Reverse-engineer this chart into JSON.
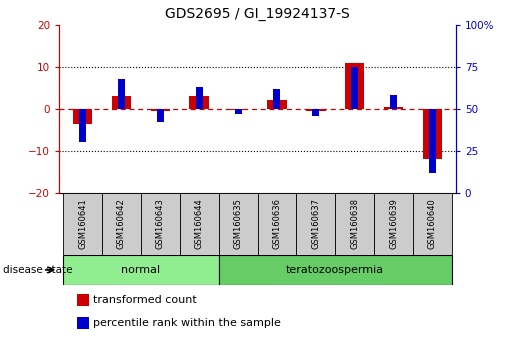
{
  "title": "GDS2695 / GI_19924137-S",
  "samples": [
    "GSM160641",
    "GSM160642",
    "GSM160643",
    "GSM160644",
    "GSM160635",
    "GSM160636",
    "GSM160637",
    "GSM160638",
    "GSM160639",
    "GSM160640"
  ],
  "red_values": [
    -3.5,
    3.0,
    -0.5,
    3.0,
    -0.3,
    2.0,
    -0.5,
    11.0,
    0.5,
    -12.0
  ],
  "blue_percentiles": [
    30,
    68,
    42,
    63,
    47,
    62,
    46,
    75,
    58,
    12
  ],
  "left_ylim": [
    -20,
    20
  ],
  "right_ylim": [
    0,
    100
  ],
  "left_yticks": [
    -20,
    -10,
    0,
    10,
    20
  ],
  "right_yticks": [
    0,
    25,
    50,
    75,
    100
  ],
  "groups": [
    {
      "label": "normal",
      "indices": [
        0,
        1,
        2,
        3
      ],
      "color": "#90EE90"
    },
    {
      "label": "teratozoospermia",
      "indices": [
        4,
        5,
        6,
        7,
        8,
        9
      ],
      "color": "#66CC66"
    }
  ],
  "red_color": "#CC0000",
  "blue_color": "#0000CC",
  "sample_box_color": "#CCCCCC",
  "legend_items": [
    {
      "label": "transformed count",
      "color": "#CC0000"
    },
    {
      "label": "percentile rank within the sample",
      "color": "#0000CC"
    }
  ],
  "disease_state_label": "disease state",
  "title_fontsize": 10,
  "tick_fontsize": 7.5,
  "legend_fontsize": 8
}
